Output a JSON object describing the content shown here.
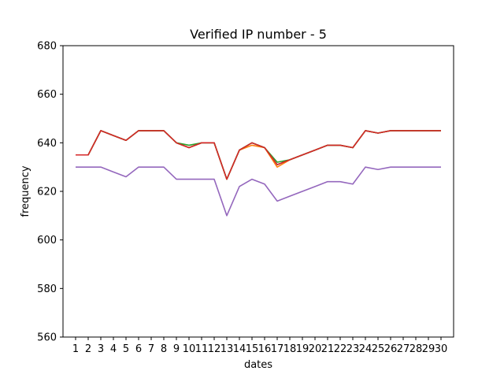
{
  "chart_data": {
    "type": "line",
    "title": "Verified IP number - 5",
    "xlabel": "dates",
    "ylabel": "frequency",
    "ylim": [
      560,
      680
    ],
    "xlim": [
      0,
      31
    ],
    "yticks": [
      560,
      580,
      600,
      620,
      640,
      660,
      680
    ],
    "categories": [
      "1",
      "2",
      "3",
      "4",
      "5",
      "6",
      "7",
      "8",
      "9",
      "10",
      "11",
      "12",
      "13",
      "14",
      "15",
      "16",
      "17",
      "18",
      "19",
      "20",
      "21",
      "22",
      "23",
      "24",
      "25",
      "26",
      "27",
      "28",
      "29",
      "30"
    ],
    "grid": false,
    "legend": "none",
    "series": [
      {
        "color": "#1f77b4",
        "values": [
          635,
          635,
          645,
          643,
          641,
          645,
          645,
          645,
          640,
          638,
          640,
          640,
          625,
          637,
          640,
          638,
          631,
          633,
          635,
          637,
          639,
          639,
          638,
          645,
          644,
          645,
          645,
          645,
          645,
          645
        ]
      },
      {
        "color": "#ff7f0e",
        "values": [
          635,
          635,
          645,
          643,
          641,
          645,
          645,
          645,
          640,
          638,
          640,
          640,
          625,
          637,
          639,
          638,
          630,
          633,
          635,
          637,
          639,
          639,
          638,
          645,
          644,
          645,
          645,
          645,
          645,
          645
        ]
      },
      {
        "color": "#2ca02c",
        "values": [
          635,
          635,
          645,
          643,
          641,
          645,
          645,
          645,
          640,
          639,
          640,
          640,
          625,
          637,
          640,
          638,
          632,
          633,
          635,
          637,
          639,
          639,
          638,
          645,
          644,
          645,
          645,
          645,
          645,
          645
        ]
      },
      {
        "color": "#d62728",
        "values": [
          635,
          635,
          645,
          643,
          641,
          645,
          645,
          645,
          640,
          638,
          640,
          640,
          625,
          637,
          640,
          638,
          631,
          633,
          635,
          637,
          639,
          639,
          638,
          645,
          644,
          645,
          645,
          645,
          645,
          645
        ]
      },
      {
        "color": "#9467bd",
        "values": [
          630,
          630,
          630,
          628,
          626,
          630,
          630,
          630,
          625,
          625,
          625,
          625,
          610,
          622,
          625,
          623,
          616,
          618,
          620,
          622,
          624,
          624,
          623,
          630,
          629,
          630,
          630,
          630,
          630,
          630
        ]
      }
    ]
  }
}
